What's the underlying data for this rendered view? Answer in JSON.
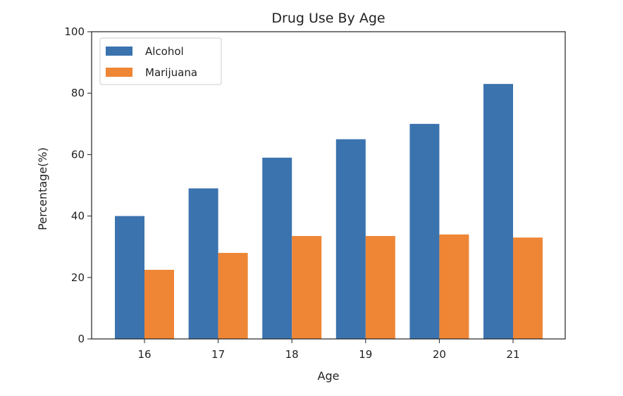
{
  "chart_data": {
    "type": "bar",
    "title": "Drug Use By Age",
    "xlabel": "Age",
    "ylabel": "Percentage(%)",
    "categories": [
      "16",
      "17",
      "18",
      "19",
      "20",
      "21"
    ],
    "series": [
      {
        "name": "Alcohol",
        "color": "#3b73ae",
        "values": [
          40,
          49,
          59,
          65,
          70,
          83
        ]
      },
      {
        "name": "Marijuana",
        "color": "#ee8636",
        "values": [
          22.5,
          28,
          33.5,
          33.5,
          34,
          33
        ]
      }
    ],
    "ylim": [
      0,
      100
    ],
    "yticks": [
      "0",
      "20",
      "40",
      "60",
      "80",
      "100"
    ],
    "legend": "top-left",
    "grid": false
  }
}
